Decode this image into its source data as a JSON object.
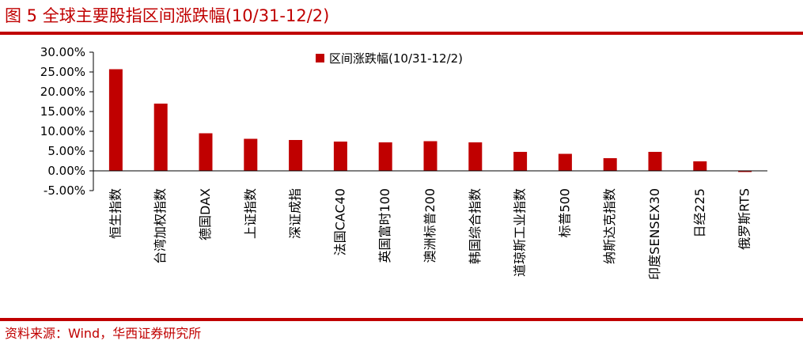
{
  "figure": {
    "title": "图 5  全球主要股指区间涨跌幅(10/31-12/2)",
    "source": "资料来源：Wind，华西证券研究所"
  },
  "colors": {
    "accent": "#c00000",
    "bar": "#c00000"
  },
  "chart_data": {
    "type": "bar",
    "categories": [
      "恒生指数",
      "台湾加权指数",
      "德国DAX",
      "上证指数",
      "深证成指",
      "法国CAC40",
      "英国富时100",
      "澳洲标普200",
      "韩国综合指数",
      "道琼斯工业指数",
      "标普500",
      "纳斯达克指数",
      "印度SENSEX30",
      "日经225",
      "俄罗斯RTS"
    ],
    "series": [
      {
        "name": "区间涨跌幅(10/31-12/2)",
        "values": [
          25.7,
          17.0,
          9.5,
          8.1,
          7.8,
          7.4,
          7.2,
          7.5,
          7.2,
          4.8,
          4.3,
          3.2,
          4.8,
          2.4,
          -0.3
        ]
      }
    ],
    "yticks": [
      "30.00%",
      "25.00%",
      "20.00%",
      "15.00%",
      "10.00%",
      "5.00%",
      "0.00%",
      "-5.00%"
    ],
    "ylim": [
      -5,
      30
    ],
    "legend": "top",
    "grid": false
  }
}
